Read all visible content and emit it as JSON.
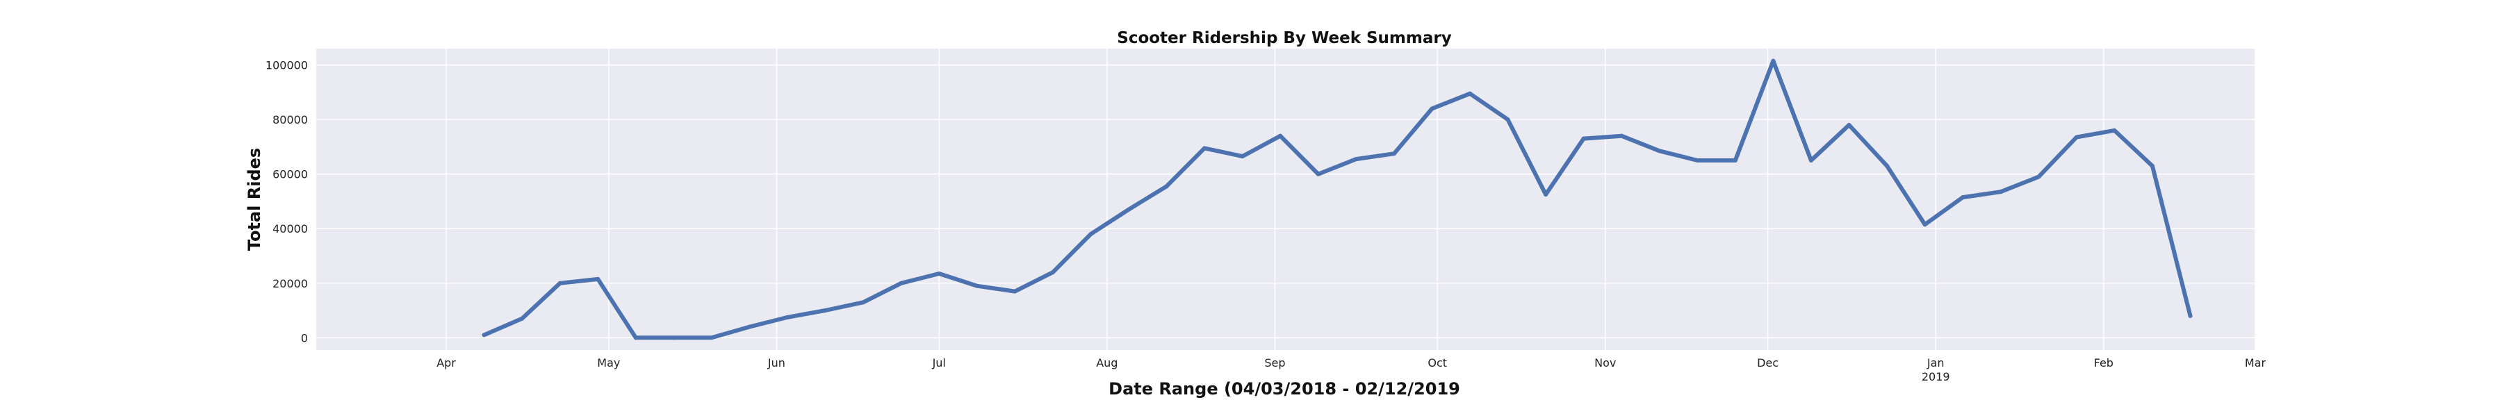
{
  "chart_data": {
    "type": "line",
    "title": "Scooter Ridership By Week Summary",
    "xlabel": "Date Range (04/03/2018 - 02/12/2019",
    "ylabel": "Total Rides",
    "x_ticks": [
      {
        "date": "2018-04-01",
        "label": "Apr",
        "sublabel": ""
      },
      {
        "date": "2018-05-01",
        "label": "May",
        "sublabel": ""
      },
      {
        "date": "2018-06-01",
        "label": "Jun",
        "sublabel": ""
      },
      {
        "date": "2018-07-01",
        "label": "Jul",
        "sublabel": ""
      },
      {
        "date": "2018-08-01",
        "label": "Aug",
        "sublabel": ""
      },
      {
        "date": "2018-09-01",
        "label": "Sep",
        "sublabel": ""
      },
      {
        "date": "2018-10-01",
        "label": "Oct",
        "sublabel": ""
      },
      {
        "date": "2018-11-01",
        "label": "Nov",
        "sublabel": ""
      },
      {
        "date": "2018-12-01",
        "label": "Dec",
        "sublabel": ""
      },
      {
        "date": "2019-01-01",
        "label": "Jan",
        "sublabel": "2019"
      },
      {
        "date": "2019-02-01",
        "label": "Feb",
        "sublabel": ""
      },
      {
        "date": "2019-03-01",
        "label": "Mar",
        "sublabel": ""
      }
    ],
    "y_ticks": [
      0,
      20000,
      40000,
      60000,
      80000,
      100000
    ],
    "y_tick_labels": [
      "0",
      "20000",
      "40000",
      "60000",
      "80000",
      "100000"
    ],
    "xlim": [
      "2018-03-08",
      "2019-03-01"
    ],
    "ylim": [
      -4500,
      106000
    ],
    "grid": true,
    "background": "#eaeaf2",
    "line_color": "#4c72b0",
    "series": [
      {
        "x": [
          "2018-04-08",
          "2018-04-15",
          "2018-04-22",
          "2018-04-29",
          "2018-05-06",
          "2018-05-13",
          "2018-05-20",
          "2018-05-27",
          "2018-06-03",
          "2018-06-10",
          "2018-06-17",
          "2018-06-24",
          "2018-07-01",
          "2018-07-08",
          "2018-07-15",
          "2018-07-22",
          "2018-07-29",
          "2018-08-05",
          "2018-08-12",
          "2018-08-19",
          "2018-08-26",
          "2018-09-02",
          "2018-09-09",
          "2018-09-16",
          "2018-09-23",
          "2018-09-30",
          "2018-10-07",
          "2018-10-14",
          "2018-10-21",
          "2018-10-28",
          "2018-11-04",
          "2018-11-11",
          "2018-11-18",
          "2018-11-25",
          "2018-12-02",
          "2018-12-09",
          "2018-12-16",
          "2018-12-23",
          "2018-12-30",
          "2019-01-06",
          "2019-01-13",
          "2019-01-20",
          "2019-01-27",
          "2019-02-03",
          "2019-02-10",
          "2019-02-17"
        ],
        "values": [
          1000,
          7000,
          20000,
          21500,
          0,
          0,
          0,
          4000,
          7500,
          10000,
          13000,
          20000,
          23500,
          19000,
          17000,
          24000,
          38000,
          47000,
          55500,
          69500,
          66500,
          74000,
          60000,
          65500,
          67500,
          84000,
          89500,
          80000,
          52500,
          73000,
          74000,
          68500,
          65000,
          65000,
          101500,
          65000,
          78000,
          63000,
          41500,
          51500,
          53500,
          59000,
          73500,
          76000,
          63000,
          8000
        ]
      }
    ]
  }
}
